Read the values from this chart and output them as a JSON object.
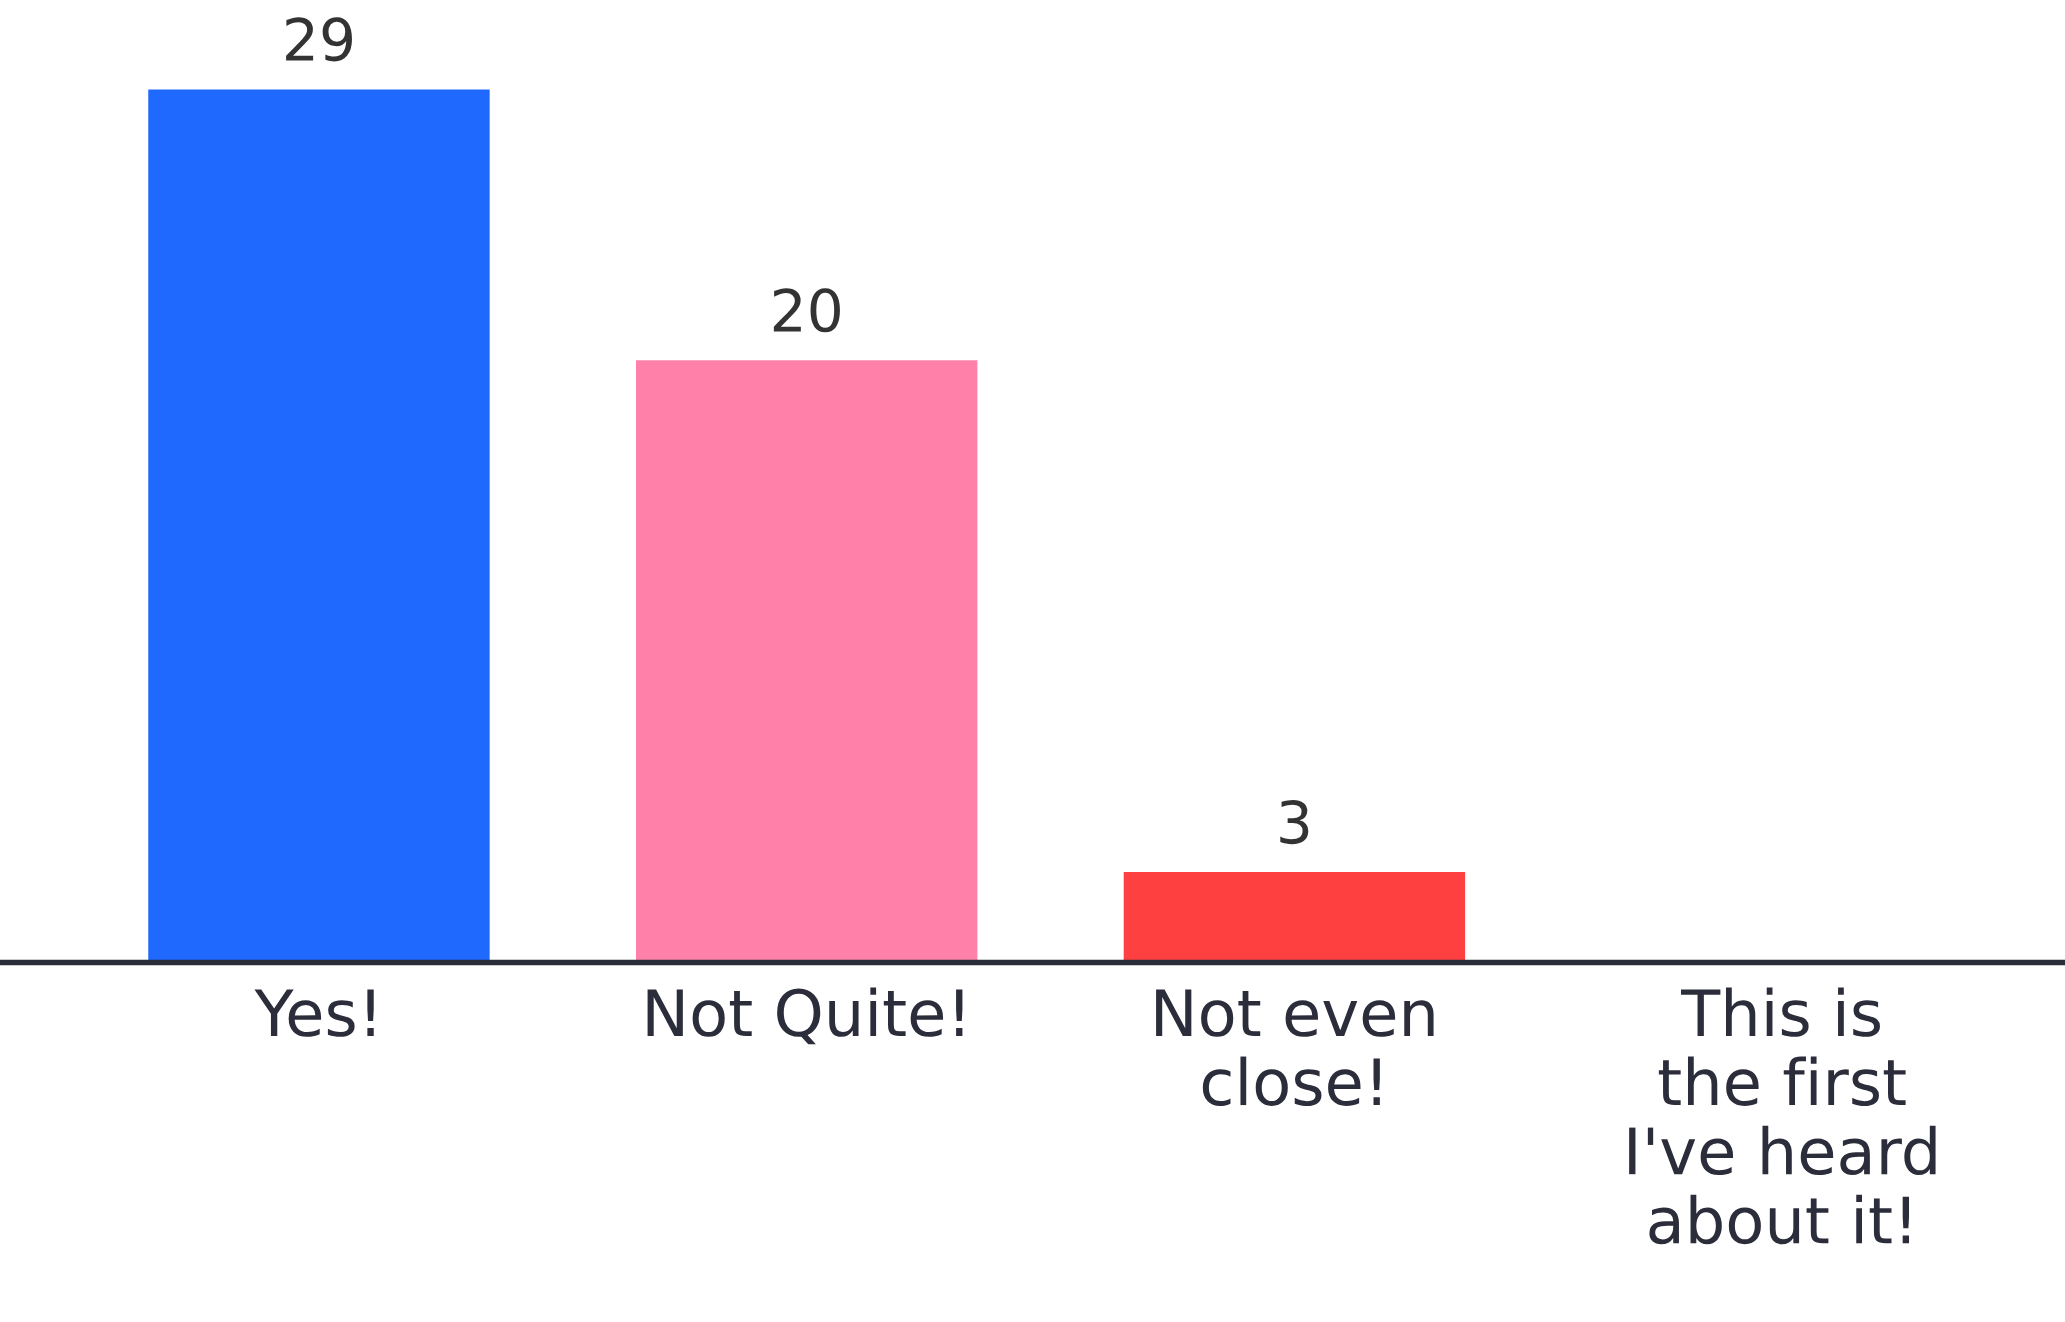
{
  "chart_data": {
    "type": "bar",
    "categories": [
      "Yes!",
      "Not Quite!",
      "Not even close!",
      "This is the first I've heard about it!"
    ],
    "values": [
      29,
      20,
      3,
      0
    ],
    "colors": [
      "#1f69ff",
      "#ff80a8",
      "#ff4040",
      "#1f69ff"
    ],
    "value_labels": [
      "29",
      "20",
      "3",
      null
    ],
    "grid": false,
    "legend": false
  }
}
